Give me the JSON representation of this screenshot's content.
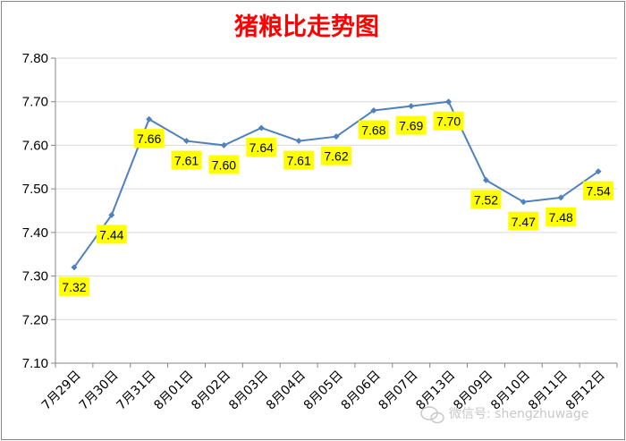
{
  "chart_data": {
    "type": "line",
    "title": "猪粮比走势图",
    "categories": [
      "7月29日",
      "7月30日",
      "7月31日",
      "8月01日",
      "8月02日",
      "8月03日",
      "8月04日",
      "8月05日",
      "8月06日",
      "8月07日",
      "8月13日",
      "8月09日",
      "8月10日",
      "8月11日",
      "8月12日"
    ],
    "series": [
      {
        "values": [
          7.32,
          7.44,
          7.66,
          7.61,
          7.6,
          7.64,
          7.61,
          7.62,
          7.68,
          7.69,
          7.7,
          7.52,
          7.47,
          7.48,
          7.54
        ]
      }
    ],
    "data_labels": [
      "7.32",
      "7.44",
      "7.66",
      "7.61",
      "7.60",
      "7.64",
      "7.61",
      "7.62",
      "7.68",
      "7.69",
      "7.70",
      "7.52",
      "7.47",
      "7.48",
      "7.54"
    ],
    "y_ticks": [
      "7.10",
      "7.20",
      "7.30",
      "7.40",
      "7.50",
      "7.60",
      "7.70",
      "7.80"
    ],
    "ylim": [
      7.1,
      7.8
    ],
    "grid": true,
    "legend": "none",
    "colors": {
      "line": "#4f81bd",
      "label_bg": "#ffff00",
      "title": "#ff0000",
      "grid": "#d9d9d9"
    }
  },
  "watermark": {
    "text": "微信号: shengzhuwage"
  }
}
